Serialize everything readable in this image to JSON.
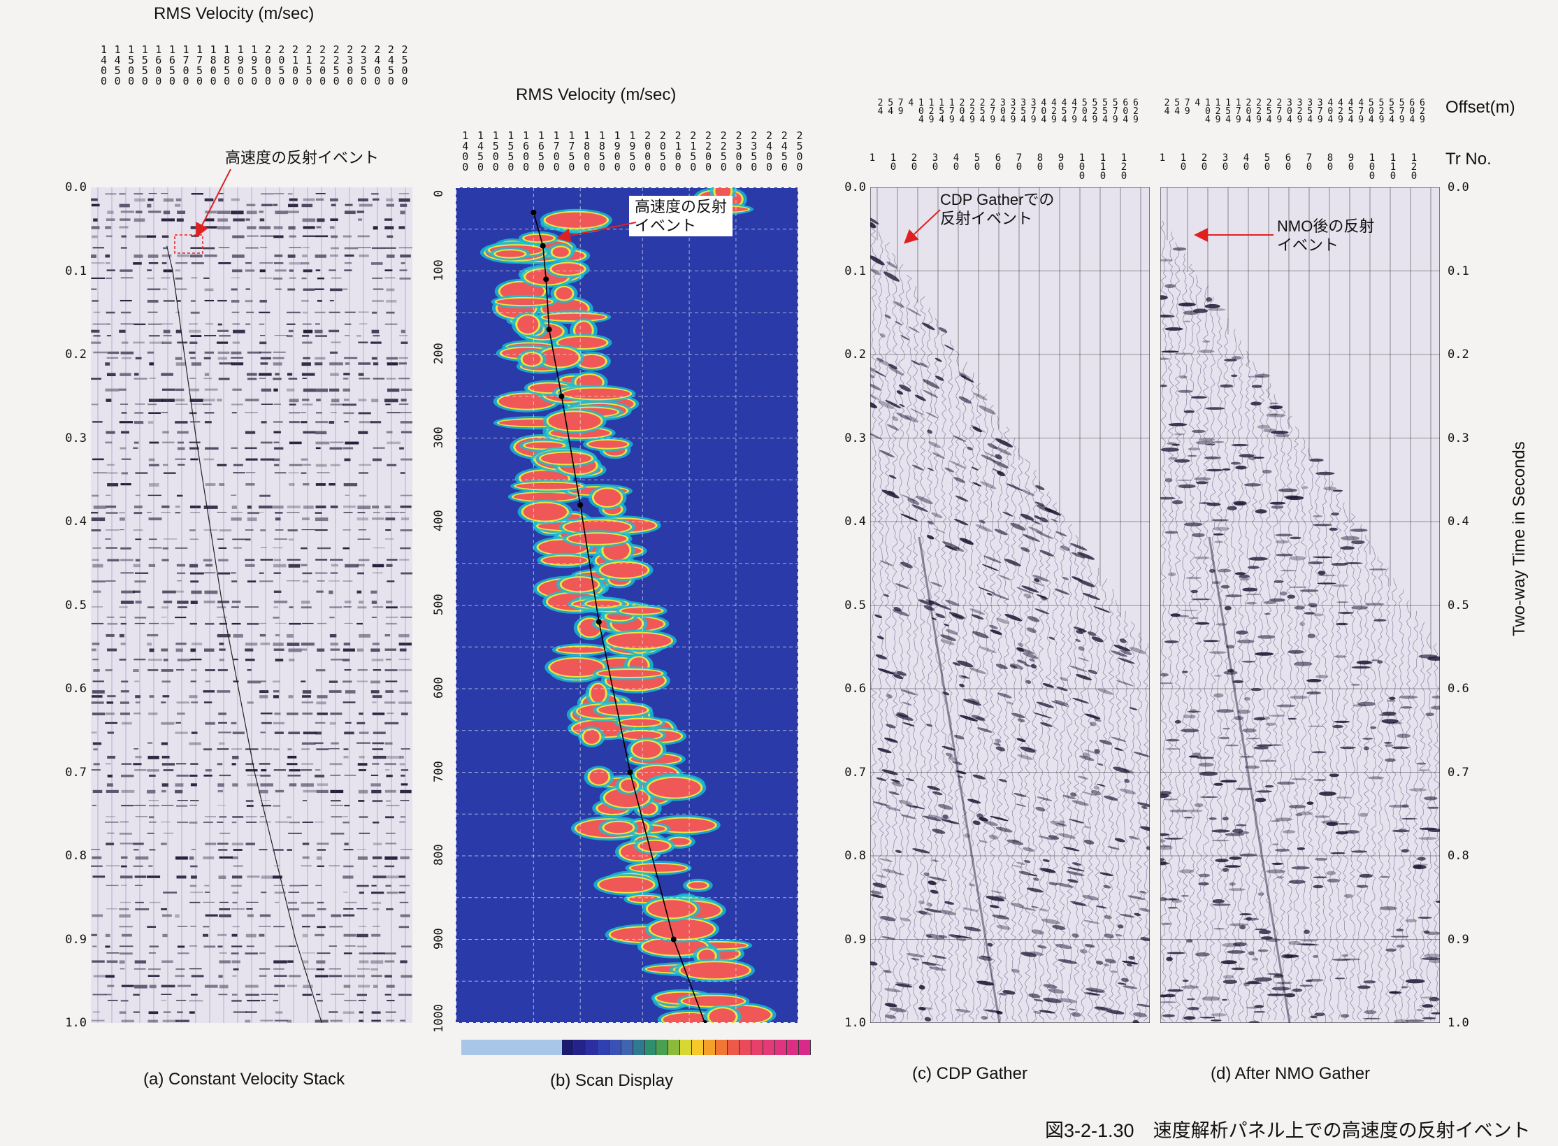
{
  "figure_caption": "図3-2-1.30　速度解析パネル上での高速度の反射イベント",
  "chart_data": [
    {
      "type": "heatmap",
      "panel": "a",
      "title": "RMS Velocity (m/sec)",
      "caption": "(a) Constant Velocity Stack",
      "velocity_labels": [
        "1400",
        "1450",
        "1500",
        "1550",
        "1600",
        "1650",
        "1700",
        "1750",
        "1800",
        "1850",
        "1900",
        "1950",
        "2000",
        "2050",
        "2100",
        "2150",
        "2200",
        "2250",
        "2300",
        "2350",
        "2400",
        "2450",
        "2500"
      ],
      "time_ticks": [
        "0.0",
        "0.1",
        "0.2",
        "0.3",
        "0.4",
        "0.5",
        "0.6",
        "0.7",
        "0.8",
        "0.9",
        "1.0"
      ],
      "ylim": [
        0.0,
        1.0
      ],
      "annotation": "高速度の反射イベント",
      "velocity_function": [
        [
          0.07,
          1660
        ],
        [
          0.1,
          1680
        ],
        [
          0.2,
          1720
        ],
        [
          0.3,
          1760
        ],
        [
          0.5,
          1850
        ],
        [
          0.7,
          1960
        ],
        [
          0.9,
          2100
        ],
        [
          1.0,
          2190
        ]
      ]
    },
    {
      "type": "heatmap",
      "panel": "b",
      "title": "RMS Velocity (m/sec)",
      "caption": "(b) Scan Display",
      "velocity_labels": [
        "1400",
        "1450",
        "1500",
        "1550",
        "1600",
        "1650",
        "1700",
        "1750",
        "1800",
        "1850",
        "1900",
        "1950",
        "2000",
        "2050",
        "2100",
        "2150",
        "2200",
        "2250",
        "2300",
        "2350",
        "2400",
        "2450",
        "2500"
      ],
      "time_ticks_ms": [
        "0",
        "100",
        "200",
        "300",
        "400",
        "500",
        "600",
        "700",
        "800",
        "900",
        "1000"
      ],
      "ylim": [
        0,
        1000
      ],
      "annotation_lines": [
        "高速度の反射",
        "イベント"
      ],
      "picks": [
        [
          30,
          1650
        ],
        [
          70,
          1680
        ],
        [
          110,
          1690
        ],
        [
          170,
          1700
        ],
        [
          250,
          1740
        ],
        [
          380,
          1800
        ],
        [
          520,
          1860
        ],
        [
          700,
          1960
        ],
        [
          900,
          2100
        ],
        [
          1000,
          2200
        ]
      ]
    },
    {
      "type": "heatmap",
      "panel": "c",
      "caption": "(c) CDP Gather",
      "offset_labels": [
        "24",
        "54",
        "79",
        "4",
        "104",
        "129",
        "154",
        "179",
        "204",
        "229",
        "254",
        "279",
        "304",
        "329",
        "354",
        "379",
        "404",
        "429",
        "454",
        "479",
        "504",
        "529",
        "554",
        "579",
        "604",
        "629"
      ],
      "trace_labels": [
        "1",
        "10",
        "20",
        "30",
        "40",
        "50",
        "60",
        "70",
        "80",
        "90",
        "100",
        "110",
        "120"
      ],
      "time_ticks": [
        "0.0",
        "0.1",
        "0.2",
        "0.3",
        "0.4",
        "0.5",
        "0.6",
        "0.7",
        "0.8",
        "0.9",
        "1.0"
      ],
      "ylim": [
        0.0,
        1.0
      ],
      "annotation_lines": [
        "CDP Gatherでの",
        "反射イベント"
      ]
    },
    {
      "type": "heatmap",
      "panel": "d",
      "caption": "(d) After NMO Gather",
      "offset_labels": [
        "24",
        "54",
        "79",
        "4",
        "104",
        "129",
        "154",
        "179",
        "204",
        "229",
        "254",
        "279",
        "304",
        "329",
        "354",
        "379",
        "404",
        "429",
        "454",
        "479",
        "504",
        "529",
        "554",
        "579",
        "604",
        "629"
      ],
      "trace_labels": [
        "1",
        "10",
        "20",
        "30",
        "40",
        "50",
        "60",
        "70",
        "80",
        "90",
        "100",
        "110",
        "120"
      ],
      "time_ticks": [
        "0.0",
        "0.1",
        "0.2",
        "0.3",
        "0.4",
        "0.5",
        "0.6",
        "0.7",
        "0.8",
        "0.9",
        "1.0"
      ],
      "ylim": [
        0.0,
        1.0
      ],
      "annotation_lines": [
        "NMO後の反射",
        "イベント"
      ],
      "right_axis_label": "Two-way Time in Seconds",
      "offset_axis_label": "Offset(m)",
      "trace_axis_label": "Tr No."
    }
  ],
  "colors": {
    "seismic_background": "#e6e3ee",
    "seismic_ink": "#1a1430",
    "scan_background": "#2a3aa8",
    "scan_low": "#18bfd6",
    "scan_mid": "#f4e83a",
    "scan_high": "#f0505a",
    "annotation_arrow": "#e02020"
  },
  "colorbar": [
    "#a8c6e8",
    "#a8c6e8",
    "#a8c6e8",
    "#a8c6e8",
    "#a8c6e8",
    "#a8c6e8",
    "#a8c6e8",
    "#a8c6e8",
    "#a8c6e8",
    "#1b1b6e",
    "#23238a",
    "#2b2fa0",
    "#3140b0",
    "#3a52b8",
    "#3f64b0",
    "#2f7a8e",
    "#2e8e6e",
    "#4aa050",
    "#8cba3a",
    "#d8d832",
    "#f6c82a",
    "#f4a02a",
    "#f07636",
    "#ee5a48",
    "#ea4a5a",
    "#e8406a",
    "#e43a78",
    "#e0347e",
    "#dc2f84",
    "#d82a88"
  ]
}
